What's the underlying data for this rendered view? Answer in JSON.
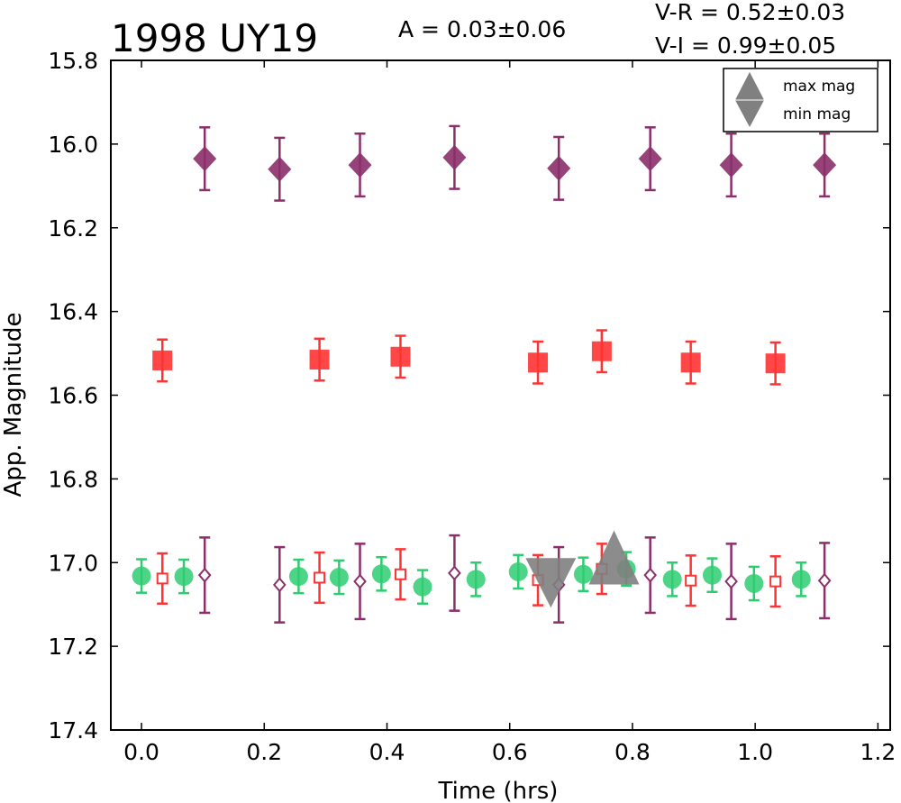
{
  "title": "1998 UY19",
  "amplitude_text": "A  = 0.03±0.06",
  "color_vr_text": "V-R = 0.52±0.03",
  "color_vi_text": "V-I  = 0.99±0.05",
  "legend": {
    "placement": "top-right",
    "items": [
      {
        "label": "max mag",
        "marker": "triangle-up",
        "color": "#808080"
      },
      {
        "label": "min mag",
        "marker": "triangle-down",
        "color": "#808080"
      }
    ]
  },
  "chart_data": {
    "type": "scatter",
    "title": "1998 UY19",
    "xlabel": "Time (hrs)",
    "ylabel": "App. Magnitude",
    "xlim": [
      -0.05,
      1.22
    ],
    "ylim": [
      17.4,
      15.8
    ],
    "y_inverted": true,
    "grid": false,
    "xticks": [
      0.0,
      0.2,
      0.4,
      0.6,
      0.8,
      1.0,
      1.2
    ],
    "xtick_labels": [
      "0.0",
      "0.2",
      "0.4",
      "0.6",
      "0.8",
      "1.0",
      "1.2"
    ],
    "yticks": [
      15.8,
      16.0,
      16.2,
      16.4,
      16.6,
      16.8,
      17.0,
      17.2,
      17.4
    ],
    "ytick_labels": [
      "15.8",
      "16.0",
      "16.2",
      "16.4",
      "16.6",
      "16.8",
      "17.0",
      "17.2",
      "17.4"
    ],
    "series": [
      {
        "marker": "diamond-filled",
        "color": "#8B2F6A",
        "x": [
          0.103,
          0.225,
          0.356,
          0.51,
          0.68,
          0.829,
          0.961,
          1.113
        ],
        "y": [
          16.035,
          16.06,
          16.05,
          16.032,
          16.058,
          16.035,
          16.05,
          16.05
        ],
        "err": [
          0.075,
          0.075,
          0.075,
          0.075,
          0.075,
          0.075,
          0.075,
          0.075
        ]
      },
      {
        "marker": "square-filled",
        "color": "#FF3333",
        "x": [
          0.034,
          0.29,
          0.422,
          0.646,
          0.75,
          0.895,
          1.033
        ],
        "y": [
          16.517,
          16.515,
          16.508,
          16.522,
          16.495,
          16.522,
          16.524
        ],
        "err": [
          0.05,
          0.05,
          0.05,
          0.05,
          0.05,
          0.05,
          0.05
        ]
      },
      {
        "marker": "circle-filled",
        "color": "#2ECC71",
        "x": [
          0.0,
          0.069,
          0.256,
          0.322,
          0.391,
          0.458,
          0.545,
          0.614,
          0.72,
          0.79,
          0.865,
          0.93,
          0.998,
          1.075
        ],
        "y": [
          17.032,
          17.033,
          17.033,
          17.035,
          17.027,
          17.058,
          17.04,
          17.022,
          17.028,
          17.015,
          17.04,
          17.03,
          17.05,
          17.04
        ],
        "err": [
          0.04,
          0.04,
          0.04,
          0.04,
          0.04,
          0.04,
          0.04,
          0.04,
          0.04,
          0.04,
          0.04,
          0.04,
          0.04,
          0.04
        ]
      },
      {
        "marker": "square-open",
        "color": "#FF3333",
        "x": [
          0.034,
          0.29,
          0.422,
          0.646,
          0.75,
          0.895,
          1.033
        ],
        "y": [
          17.038,
          17.036,
          17.028,
          17.042,
          17.015,
          17.043,
          17.045
        ],
        "err": [
          0.06,
          0.06,
          0.06,
          0.06,
          0.06,
          0.06,
          0.06
        ]
      },
      {
        "marker": "diamond-open",
        "color": "#8B2F6A",
        "x": [
          0.103,
          0.225,
          0.356,
          0.51,
          0.68,
          0.829,
          0.961,
          1.113
        ],
        "y": [
          17.03,
          17.053,
          17.045,
          17.025,
          17.053,
          17.03,
          17.045,
          17.043
        ],
        "err": [
          0.09,
          0.09,
          0.09,
          0.09,
          0.09,
          0.09,
          0.09,
          0.09
        ]
      }
    ],
    "markers": [
      {
        "name": "max mag",
        "marker": "triangle-up",
        "color": "#808080",
        "x": 0.77,
        "y": 17.02
      },
      {
        "name": "min mag",
        "marker": "triangle-down",
        "color": "#808080",
        "x": 0.667,
        "y": 17.043
      }
    ]
  }
}
